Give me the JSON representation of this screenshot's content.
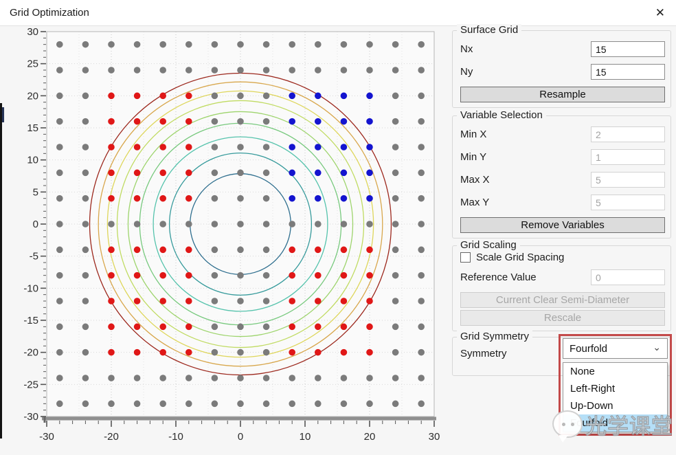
{
  "window": {
    "title": "Grid Optimization",
    "close_glyph": "✕"
  },
  "surface_grid": {
    "title": "Surface Grid",
    "nx_label": "Nx",
    "nx_value": "15",
    "ny_label": "Ny",
    "ny_value": "15",
    "resample_label": "Resample"
  },
  "variable_selection": {
    "title": "Variable Selection",
    "fields": [
      {
        "label": "Min X",
        "value": "2"
      },
      {
        "label": "Min Y",
        "value": "1"
      },
      {
        "label": "Max X",
        "value": "5"
      },
      {
        "label": "Max Y",
        "value": "5"
      }
    ],
    "remove_label": "Remove Variables"
  },
  "grid_scaling": {
    "title": "Grid Scaling",
    "checkbox_label": "Scale Grid Spacing",
    "checkbox_checked": false,
    "reference_label": "Reference Value",
    "reference_value": "0",
    "ccsd_label": "Current Clear Semi-Diameter",
    "rescale_label": "Rescale"
  },
  "grid_symmetry": {
    "title": "Grid Symmetry",
    "symmetry_label": "Symmetry",
    "selected": "Fourfold",
    "options": [
      "None",
      "Left-Right",
      "Up-Down",
      "Fourfold"
    ],
    "highlighted_option": "Fourfold",
    "highlight_color": "#b5dff7"
  },
  "annotation": {
    "color": "#c34a4a"
  },
  "watermark": {
    "text": "光学课堂"
  },
  "chart_data": {
    "type": "scatter",
    "title": "",
    "xlabel": "",
    "ylabel": "",
    "xlim": [
      -30,
      30
    ],
    "ylim": [
      -30,
      30
    ],
    "x_major_ticks": [
      -30,
      -20,
      -10,
      0,
      10,
      20,
      30
    ],
    "y_major_ticks": [
      30,
      25,
      20,
      15,
      10,
      5,
      0,
      -5,
      -10,
      -15,
      -20,
      -25,
      -30
    ],
    "x_minor_step": 2,
    "y_minor_step": 1,
    "grid": {
      "step": 5,
      "x_strong_step": 10,
      "style": "dotted"
    },
    "plot_bg": "#fafafa",
    "points": {
      "description": "15x15 uniform grid of sample points",
      "coords_min": -28,
      "coords_max": 28,
      "step": 4,
      "colored_x_values": [
        8,
        12,
        16,
        20
      ],
      "colored_y_values": [
        4,
        8,
        12,
        16,
        20
      ],
      "blue_rule": "x>0 and y>0 (master variables, upper-right quadrant)",
      "red_rule": "mirrored points in the other three quadrants",
      "gray": "#7b7b7b",
      "red": "#e01717",
      "blue": "#1414cf",
      "dot_radius": 4.8
    },
    "rings": {
      "description": "concentric sag contour circles, inner to outer",
      "center": [
        0,
        0
      ],
      "radii": [
        7.8,
        11.0,
        13.5,
        15.6,
        17.4,
        19.1,
        20.6,
        22.0,
        23.35
      ],
      "colors": [
        "#2e6e8e",
        "#359a9b",
        "#55c3ac",
        "#77c97d",
        "#9dd46c",
        "#c0db62",
        "#ded65a",
        "#d8a74c",
        "#9c271c"
      ]
    },
    "legend": "none"
  }
}
